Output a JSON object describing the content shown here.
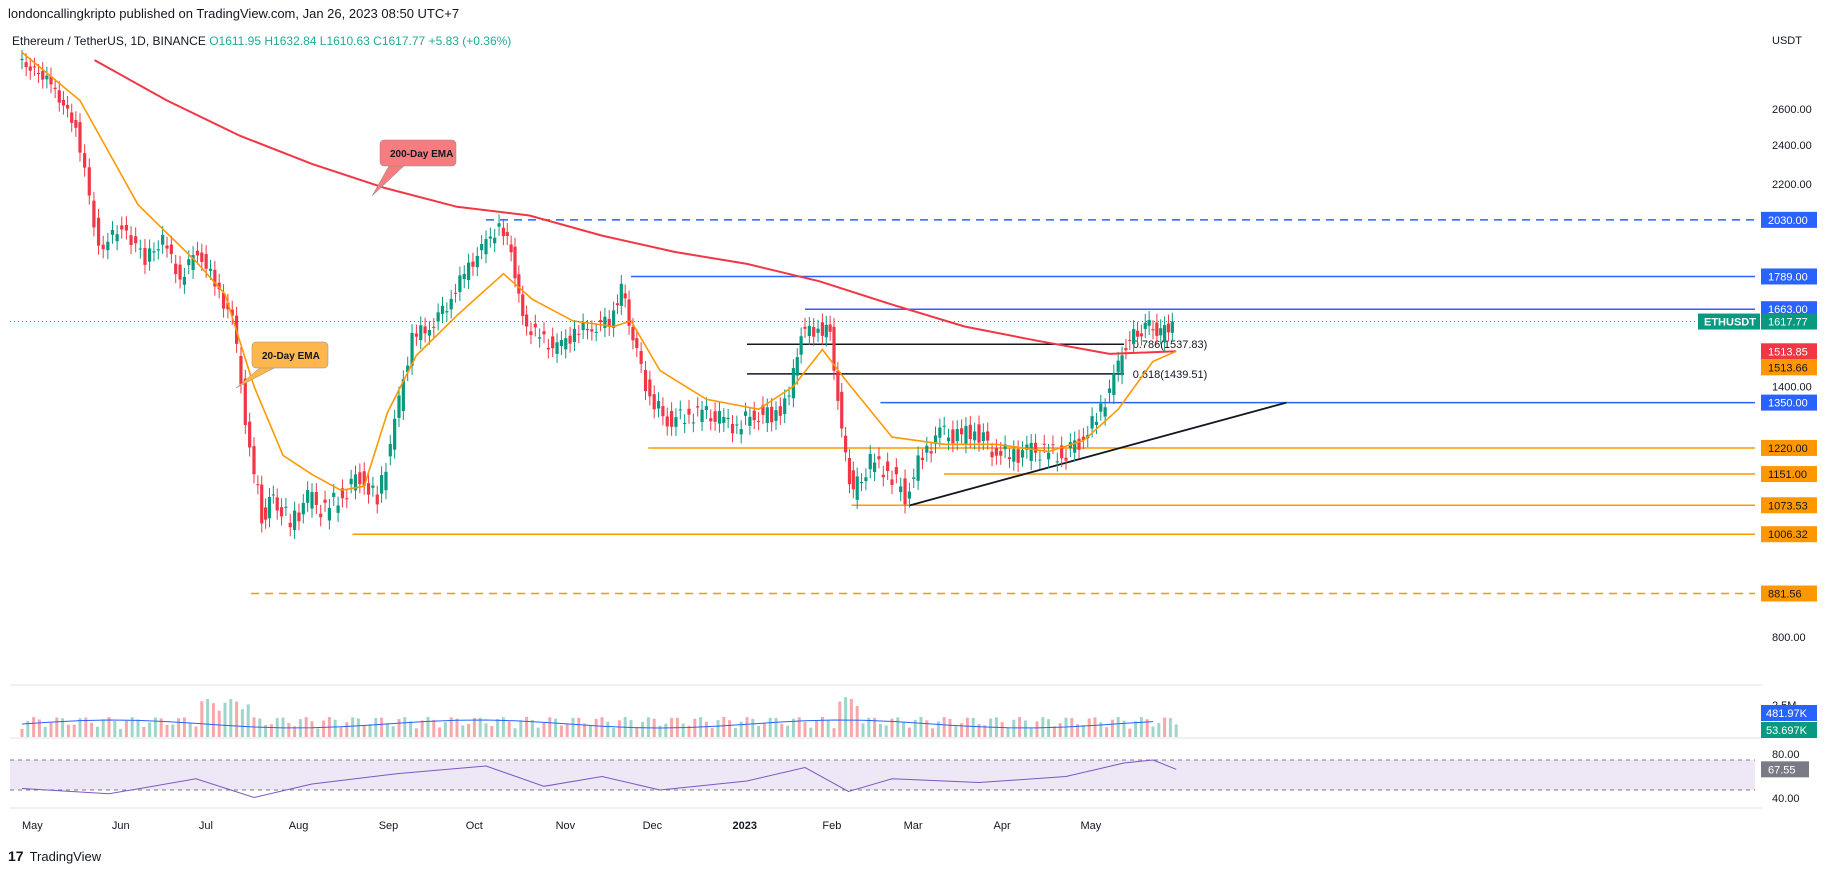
{
  "header": {
    "publisher_line": "londoncallingkripto published on TradingView.com, Jan 26, 2023 08:50 UTC+7",
    "symbol_line": "Ethereum / TetherUS, 1D, BINANCE",
    "ohlc": {
      "open": "O1611.95",
      "high": "H1632.84",
      "low": "L1610.63",
      "close": "C1617.77",
      "change": "+5.83 (+0.36%)"
    }
  },
  "footer": {
    "brand": "TradingView",
    "logo_glyph": "17"
  },
  "chart_data": {
    "type": "candlestick",
    "title": "Ethereum / TetherUS, 1D, BINANCE",
    "currency_label": "USDT",
    "x_months": [
      "May",
      "Jun",
      "Jul",
      "Aug",
      "Sep",
      "Oct",
      "Nov",
      "Dec",
      "2023",
      "Feb",
      "Mar",
      "Apr",
      "May"
    ],
    "y_ticks": [
      2600,
      2400,
      2200,
      1400,
      800
    ],
    "ylim": [
      700,
      2800
    ],
    "price_path": [
      [
        0,
        2900
      ],
      [
        10,
        2780
      ],
      [
        20,
        2500
      ],
      [
        28,
        1900
      ],
      [
        36,
        2000
      ],
      [
        44,
        1860
      ],
      [
        50,
        1940
      ],
      [
        56,
        1780
      ],
      [
        62,
        1900
      ],
      [
        68,
        1760
      ],
      [
        74,
        1620
      ],
      [
        80,
        1200
      ],
      [
        84,
        1050
      ],
      [
        88,
        1090
      ],
      [
        94,
        1030
      ],
      [
        100,
        1090
      ],
      [
        106,
        1060
      ],
      [
        112,
        1100
      ],
      [
        118,
        1150
      ],
      [
        124,
        1080
      ],
      [
        130,
        1280
      ],
      [
        136,
        1560
      ],
      [
        142,
        1600
      ],
      [
        148,
        1680
      ],
      [
        154,
        1800
      ],
      [
        160,
        1900
      ],
      [
        166,
        2000
      ],
      [
        170,
        1900
      ],
      [
        174,
        1620
      ],
      [
        180,
        1560
      ],
      [
        186,
        1520
      ],
      [
        192,
        1580
      ],
      [
        198,
        1600
      ],
      [
        204,
        1620
      ],
      [
        208,
        1740
      ],
      [
        212,
        1560
      ],
      [
        218,
        1360
      ],
      [
        224,
        1300
      ],
      [
        230,
        1310
      ],
      [
        236,
        1320
      ],
      [
        242,
        1300
      ],
      [
        248,
        1280
      ],
      [
        254,
        1320
      ],
      [
        260,
        1310
      ],
      [
        266,
        1360
      ],
      [
        270,
        1580
      ],
      [
        276,
        1590
      ],
      [
        280,
        1580
      ],
      [
        284,
        1250
      ],
      [
        288,
        1100
      ],
      [
        294,
        1180
      ],
      [
        300,
        1160
      ],
      [
        306,
        1100
      ],
      [
        312,
        1200
      ],
      [
        318,
        1260
      ],
      [
        324,
        1250
      ],
      [
        330,
        1270
      ],
      [
        336,
        1220
      ],
      [
        342,
        1200
      ],
      [
        348,
        1210
      ],
      [
        354,
        1210
      ],
      [
        360,
        1200
      ],
      [
        366,
        1240
      ],
      [
        372,
        1300
      ],
      [
        378,
        1420
      ],
      [
        382,
        1540
      ],
      [
        386,
        1580
      ],
      [
        390,
        1610
      ],
      [
        394,
        1570
      ],
      [
        398,
        1617.77
      ]
    ],
    "ema200": {
      "label": "200-Day EMA",
      "color": "#f23645",
      "points": [
        [
          25,
          2900
        ],
        [
          50,
          2650
        ],
        [
          75,
          2450
        ],
        [
          100,
          2300
        ],
        [
          125,
          2180
        ],
        [
          150,
          2090
        ],
        [
          175,
          2050
        ],
        [
          200,
          1960
        ],
        [
          225,
          1890
        ],
        [
          250,
          1840
        ],
        [
          275,
          1770
        ],
        [
          300,
          1680
        ],
        [
          325,
          1600
        ],
        [
          350,
          1550
        ],
        [
          375,
          1505
        ],
        [
          398,
          1513.85
        ]
      ]
    },
    "ema20": {
      "label": "20-Day EMA",
      "color": "#ff9800",
      "points": [
        [
          0,
          2950
        ],
        [
          20,
          2650
        ],
        [
          40,
          2100
        ],
        [
          60,
          1850
        ],
        [
          70,
          1720
        ],
        [
          80,
          1400
        ],
        [
          90,
          1200
        ],
        [
          100,
          1150
        ],
        [
          110,
          1110
        ],
        [
          118,
          1120
        ],
        [
          126,
          1320
        ],
        [
          136,
          1500
        ],
        [
          150,
          1640
        ],
        [
          166,
          1800
        ],
        [
          176,
          1700
        ],
        [
          190,
          1620
        ],
        [
          204,
          1600
        ],
        [
          210,
          1620
        ],
        [
          220,
          1450
        ],
        [
          236,
          1360
        ],
        [
          254,
          1330
        ],
        [
          266,
          1400
        ],
        [
          276,
          1520
        ],
        [
          284,
          1420
        ],
        [
          300,
          1250
        ],
        [
          318,
          1230
        ],
        [
          336,
          1230
        ],
        [
          354,
          1210
        ],
        [
          366,
          1240
        ],
        [
          378,
          1330
        ],
        [
          390,
          1480
        ],
        [
          398,
          1513.66
        ]
      ]
    },
    "levels": [
      {
        "price": 2030.0,
        "label": "2030.00",
        "color": "#2962ff",
        "style": "dashed",
        "from": 160
      },
      {
        "price": 1789.0,
        "label": "1789.00",
        "color": "#2962ff",
        "style": "solid",
        "from": 210
      },
      {
        "price": 1663.0,
        "label": "1663.00",
        "color": "#2962ff",
        "style": "solid",
        "from": 270
      },
      {
        "price": 1350.0,
        "label": "1350.00",
        "color": "#2962ff",
        "style": "solid",
        "from": 296
      },
      {
        "price": 1220.0,
        "label": "1220.00",
        "color": "#ff9800",
        "style": "solid",
        "from": 216
      },
      {
        "price": 1151.0,
        "label": "1151.00",
        "color": "#ff9800",
        "style": "solid",
        "from": 318
      },
      {
        "price": 1073.53,
        "label": "1073.53",
        "color": "#ff9800",
        "style": "solid",
        "from": 286
      },
      {
        "price": 1006.32,
        "label": "1006.32",
        "color": "#ff9800",
        "style": "solid",
        "from": 114
      },
      {
        "price": 881.56,
        "label": "881.56",
        "color": "#ff9800",
        "style": "dashed",
        "from": 79
      }
    ],
    "fib": [
      {
        "price": 1537.83,
        "label": "0.786(1537.83)"
      },
      {
        "price": 1439.51,
        "label": "0.618(1439.51)"
      }
    ],
    "trendline": {
      "from": [
        306,
        1073
      ],
      "to": [
        436,
        1350
      ]
    },
    "price_tags": [
      {
        "price": 1617.77,
        "label": "1617.77",
        "symbol": "ETHUSDT",
        "color": "#089981"
      },
      {
        "price": 1513.85,
        "label": "1513.85",
        "color": "#f23645"
      },
      {
        "price": 1513.66,
        "label": "1513.66",
        "color": "#ff9800"
      }
    ],
    "volume": {
      "labels": [
        "481.97K",
        "53.697K"
      ],
      "scale_label": "2.5M"
    },
    "rsi": {
      "value": "67.55",
      "upper": "80.00",
      "lower": "40.00",
      "path": [
        [
          0,
          42
        ],
        [
          30,
          35
        ],
        [
          60,
          55
        ],
        [
          80,
          30
        ],
        [
          100,
          48
        ],
        [
          130,
          62
        ],
        [
          160,
          72
        ],
        [
          180,
          45
        ],
        [
          200,
          58
        ],
        [
          220,
          40
        ],
        [
          250,
          52
        ],
        [
          270,
          70
        ],
        [
          285,
          38
        ],
        [
          300,
          55
        ],
        [
          330,
          50
        ],
        [
          360,
          58
        ],
        [
          380,
          76
        ],
        [
          390,
          80
        ],
        [
          398,
          67.55
        ]
      ]
    }
  }
}
